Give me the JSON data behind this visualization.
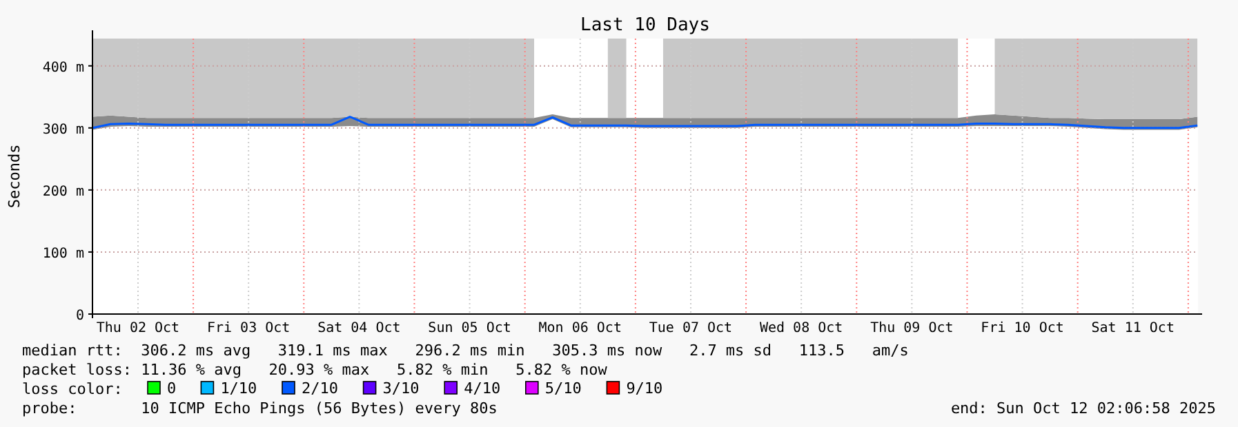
{
  "chart_data": {
    "type": "line",
    "title": "Last 10 Days",
    "ylabel": "Seconds",
    "legend_title": "loss color:",
    "legend": "bottom",
    "grid": true,
    "line_style": "solid",
    "marker": "none",
    "x": [
      "2025-10-02T02:07",
      "2025-10-02T06:00",
      "2025-10-02T10:00",
      "2025-10-02T14:00",
      "2025-10-02T18:00",
      "2025-10-02T22:00",
      "2025-10-03T02:00",
      "2025-10-03T06:00",
      "2025-10-03T10:00",
      "2025-10-03T14:00",
      "2025-10-03T18:00",
      "2025-10-03T22:00",
      "2025-10-04T02:00",
      "2025-10-04T06:00",
      "2025-10-04T10:00",
      "2025-10-04T14:00",
      "2025-10-04T18:00",
      "2025-10-04T22:00",
      "2025-10-05T02:00",
      "2025-10-05T06:00",
      "2025-10-05T10:00",
      "2025-10-05T14:00",
      "2025-10-05T18:00",
      "2025-10-05T22:00",
      "2025-10-06T02:00",
      "2025-10-06T06:00",
      "2025-10-06T10:00",
      "2025-10-06T14:00",
      "2025-10-06T18:00",
      "2025-10-06T22:00",
      "2025-10-07T02:00",
      "2025-10-07T06:00",
      "2025-10-07T10:00",
      "2025-10-07T14:00",
      "2025-10-07T18:00",
      "2025-10-07T22:00",
      "2025-10-08T02:00",
      "2025-10-08T06:00",
      "2025-10-08T10:00",
      "2025-10-08T14:00",
      "2025-10-08T18:00",
      "2025-10-08T22:00",
      "2025-10-09T02:00",
      "2025-10-09T06:00",
      "2025-10-09T10:00",
      "2025-10-09T14:00",
      "2025-10-09T18:00",
      "2025-10-09T22:00",
      "2025-10-10T02:00",
      "2025-10-10T06:00",
      "2025-10-10T10:00",
      "2025-10-10T14:00",
      "2025-10-10T18:00",
      "2025-10-10T22:00",
      "2025-10-11T02:00",
      "2025-10-11T06:00",
      "2025-10-11T10:00",
      "2025-10-11T14:00",
      "2025-10-11T18:00",
      "2025-10-11T22:00",
      "2025-10-12T02:00"
    ],
    "xlim": [
      "2025-10-02T02:07",
      "2025-10-12T02:07"
    ],
    "xticks": [
      {
        "value": "2025-10-02T12:00",
        "label": "Thu 02 Oct"
      },
      {
        "value": "2025-10-03T12:00",
        "label": "Fri 03 Oct"
      },
      {
        "value": "2025-10-04T12:00",
        "label": "Sat 04 Oct"
      },
      {
        "value": "2025-10-05T12:00",
        "label": "Sun 05 Oct"
      },
      {
        "value": "2025-10-06T12:00",
        "label": "Mon 06 Oct"
      },
      {
        "value": "2025-10-07T12:00",
        "label": "Tue 07 Oct"
      },
      {
        "value": "2025-10-08T12:00",
        "label": "Wed 08 Oct"
      },
      {
        "value": "2025-10-09T12:00",
        "label": "Thu 09 Oct"
      },
      {
        "value": "2025-10-10T12:00",
        "label": "Fri 10 Oct"
      },
      {
        "value": "2025-10-11T12:00",
        "label": "Sat 11 Oct"
      }
    ],
    "ylim": [
      0,
      444
    ],
    "yticks": [
      0,
      {
        "value": 100,
        "label": "100 m"
      },
      {
        "value": 200,
        "label": "200 m"
      },
      {
        "value": 300,
        "label": "300 m"
      },
      {
        "value": 400,
        "label": "400 m"
      }
    ],
    "ref_lines": [
      {
        "axis": "x",
        "value": "2025-10-03T00:00",
        "color": "#ff8080",
        "line_style": "dotted"
      },
      {
        "axis": "x",
        "value": "2025-10-04T00:00",
        "color": "#ff8080",
        "line_style": "dotted"
      },
      {
        "axis": "x",
        "value": "2025-10-05T00:00",
        "color": "#ff8080",
        "line_style": "dotted"
      },
      {
        "axis": "x",
        "value": "2025-10-06T00:00",
        "color": "#ff8080",
        "line_style": "dotted"
      },
      {
        "axis": "x",
        "value": "2025-10-07T00:00",
        "color": "#ff8080",
        "line_style": "dotted"
      },
      {
        "axis": "x",
        "value": "2025-10-08T00:00",
        "color": "#ff8080",
        "line_style": "dotted"
      },
      {
        "axis": "x",
        "value": "2025-10-09T00:00",
        "color": "#ff8080",
        "line_style": "dotted"
      },
      {
        "axis": "x",
        "value": "2025-10-10T00:00",
        "color": "#ff8080",
        "line_style": "dotted"
      },
      {
        "axis": "x",
        "value": "2025-10-11T00:00",
        "color": "#ff8080",
        "line_style": "dotted"
      },
      {
        "axis": "x",
        "value": "2025-10-12T00:00",
        "color": "#ff8080",
        "line_style": "dotted"
      }
    ],
    "series": [
      {
        "type": "area",
        "color": "#c8c8c8",
        "values": [
          null,
          null,
          null,
          null,
          null,
          null,
          null,
          null,
          null,
          null,
          null,
          null,
          null,
          null,
          null,
          null,
          null,
          null,
          null,
          null,
          null,
          null,
          null,
          null,
          null,
          null,
          null,
          null,
          null,
          null,
          null,
          null,
          null,
          null,
          null,
          null,
          null,
          null,
          null,
          null,
          null,
          null,
          null,
          null,
          null,
          null,
          null,
          null,
          null,
          null,
          null,
          null,
          null,
          null,
          null,
          null,
          null,
          null,
          null,
          null,
          null
        ],
        "upper": [
          444,
          444,
          444,
          444,
          444,
          444,
          444,
          444,
          444,
          444,
          444,
          444,
          444,
          444,
          444,
          444,
          444,
          444,
          444,
          444,
          444,
          444,
          444,
          444,
          444,
          null,
          null,
          null,
          444,
          444,
          null,
          444,
          444,
          444,
          444,
          444,
          444,
          444,
          444,
          444,
          444,
          444,
          444,
          444,
          444,
          444,
          444,
          444,
          null,
          444,
          444,
          444,
          444,
          444,
          444,
          444,
          444,
          444,
          444,
          444,
          444
        ],
        "lower": [
          318,
          320,
          318,
          316,
          316,
          316,
          316,
          316,
          316,
          316,
          316,
          316,
          316,
          316,
          318,
          316,
          316,
          316,
          316,
          316,
          316,
          316,
          316,
          316,
          316,
          null,
          null,
          null,
          316,
          316,
          null,
          316,
          316,
          316,
          316,
          316,
          316,
          316,
          316,
          316,
          316,
          316,
          316,
          316,
          316,
          316,
          316,
          316,
          null,
          322,
          320,
          318,
          316,
          316,
          315,
          314,
          314,
          314,
          314,
          314,
          318
        ]
      },
      {
        "color": "#00ff00",
        "name": "0",
        "values": [
          null,
          null,
          null,
          null,
          null,
          null,
          null,
          null,
          null,
          null,
          null,
          null,
          null,
          null,
          null,
          null,
          null,
          null,
          null,
          null,
          null,
          null,
          null,
          null,
          null,
          null,
          null,
          null,
          null,
          null,
          null,
          null,
          null,
          null,
          null,
          null,
          null,
          null,
          null,
          null,
          null,
          null,
          null,
          null,
          null,
          null,
          null,
          null,
          null,
          null,
          null,
          null,
          null,
          null,
          null,
          null,
          null,
          null,
          null,
          null,
          null
        ]
      },
      {
        "color": "#00b8ff",
        "name": "1/10",
        "values": [
          null,
          null,
          null,
          null,
          null,
          null,
          null,
          null,
          null,
          null,
          null,
          null,
          null,
          null,
          null,
          null,
          null,
          null,
          null,
          null,
          null,
          null,
          null,
          null,
          null,
          null,
          null,
          null,
          null,
          null,
          null,
          null,
          null,
          null,
          null,
          null,
          null,
          null,
          null,
          null,
          null,
          null,
          null,
          null,
          null,
          null,
          null,
          null,
          null,
          null,
          null,
          null,
          null,
          null,
          null,
          null,
          null,
          null,
          null,
          null,
          null
        ]
      },
      {
        "color": "#0059ff",
        "name": "2/10",
        "values": [
          300,
          306,
          307,
          306,
          305,
          305,
          305,
          305,
          305,
          305,
          305,
          305,
          305,
          305,
          318,
          305,
          305,
          305,
          305,
          305,
          305,
          305,
          305,
          305,
          305,
          317,
          304,
          304,
          304,
          304,
          303,
          303,
          303,
          303,
          303,
          303,
          305,
          305,
          305,
          305,
          305,
          305,
          305,
          305,
          305,
          305,
          305,
          305,
          307,
          307,
          306,
          306,
          306,
          305,
          303,
          301,
          300,
          300,
          300,
          300,
          304
        ],
        "lower": [
          297,
          302,
          303,
          302,
          302,
          302,
          302,
          302,
          302,
          302,
          302,
          302,
          302,
          302,
          303,
          302,
          302,
          302,
          302,
          302,
          302,
          302,
          302,
          302,
          302,
          314,
          301,
          301,
          301,
          301,
          300,
          300,
          300,
          300,
          300,
          300,
          302,
          302,
          302,
          302,
          302,
          302,
          302,
          302,
          302,
          302,
          302,
          302,
          303,
          303,
          303,
          303,
          303,
          302,
          300,
          298,
          297,
          297,
          297,
          297,
          301
        ],
        "upper": [
          318,
          320,
          318,
          316,
          316,
          316,
          316,
          316,
          316,
          316,
          316,
          316,
          316,
          316,
          318,
          316,
          316,
          316,
          316,
          316,
          316,
          316,
          316,
          316,
          316,
          322,
          316,
          316,
          316,
          316,
          316,
          316,
          316,
          316,
          316,
          316,
          316,
          316,
          316,
          316,
          316,
          316,
          316,
          316,
          316,
          316,
          316,
          316,
          320,
          322,
          320,
          318,
          316,
          316,
          315,
          314,
          314,
          314,
          314,
          314,
          318
        ]
      },
      {
        "color": "#5e00ff",
        "name": "3/10",
        "values": [
          null,
          null,
          null,
          null,
          null,
          null,
          null,
          null,
          null,
          null,
          null,
          null,
          null,
          null,
          null,
          null,
          null,
          null,
          null,
          null,
          null,
          null,
          null,
          null,
          null,
          null,
          null,
          null,
          null,
          null,
          null,
          null,
          null,
          null,
          null,
          null,
          null,
          null,
          null,
          null,
          null,
          null,
          null,
          null,
          null,
          null,
          null,
          null,
          null,
          null,
          null,
          null,
          null,
          null,
          null,
          null,
          null,
          null,
          null,
          null,
          null
        ]
      },
      {
        "color": "#7e00ff",
        "name": "4/10",
        "values": [
          null,
          null,
          null,
          null,
          null,
          null,
          null,
          null,
          null,
          null,
          null,
          null,
          null,
          null,
          null,
          null,
          null,
          null,
          null,
          null,
          null,
          null,
          null,
          null,
          null,
          null,
          null,
          null,
          null,
          null,
          null,
          null,
          null,
          null,
          null,
          null,
          null,
          null,
          null,
          null,
          null,
          null,
          null,
          null,
          null,
          null,
          null,
          null,
          null,
          null,
          null,
          null,
          null,
          null,
          null,
          null,
          null,
          null,
          null,
          null,
          null
        ]
      },
      {
        "color": "#dd00ff",
        "name": "5/10",
        "values": [
          null,
          null,
          null,
          null,
          null,
          null,
          null,
          null,
          null,
          null,
          null,
          null,
          null,
          null,
          null,
          null,
          null,
          null,
          null,
          null,
          null,
          null,
          null,
          null,
          null,
          null,
          null,
          null,
          null,
          null,
          null,
          null,
          null,
          null,
          null,
          null,
          null,
          null,
          null,
          null,
          null,
          null,
          null,
          null,
          null,
          null,
          null,
          null,
          null,
          null,
          null,
          null,
          null,
          null,
          null,
          null,
          null,
          null,
          null,
          null,
          null
        ]
      },
      {
        "color": "#ff0000",
        "name": "9/10",
        "values": [
          null,
          null,
          null,
          null,
          null,
          null,
          null,
          null,
          null,
          null,
          null,
          null,
          null,
          null,
          null,
          null,
          null,
          null,
          null,
          null,
          null,
          null,
          null,
          null,
          null,
          null,
          null,
          null,
          null,
          null,
          null,
          null,
          null,
          null,
          null,
          null,
          null,
          null,
          null,
          null,
          null,
          null,
          null,
          null,
          null,
          null,
          null,
          null,
          null,
          null,
          null,
          null,
          null,
          null,
          null,
          null,
          null,
          null,
          null,
          null,
          null
        ]
      }
    ],
    "annotations": [
      "median rtt:  306.2 ms avg   319.1 ms max   296.2 ms min   305.3 ms now   2.7 ms sd   113.5   am/s",
      "packet loss: 11.36 % avg   20.93 % max   5.82 % min   5.82 % now",
      "probe:       10 ICMP Echo Pings (56 Bytes) every 80s",
      "end: Sun Oct 12 02:06:58 2025"
    ]
  }
}
